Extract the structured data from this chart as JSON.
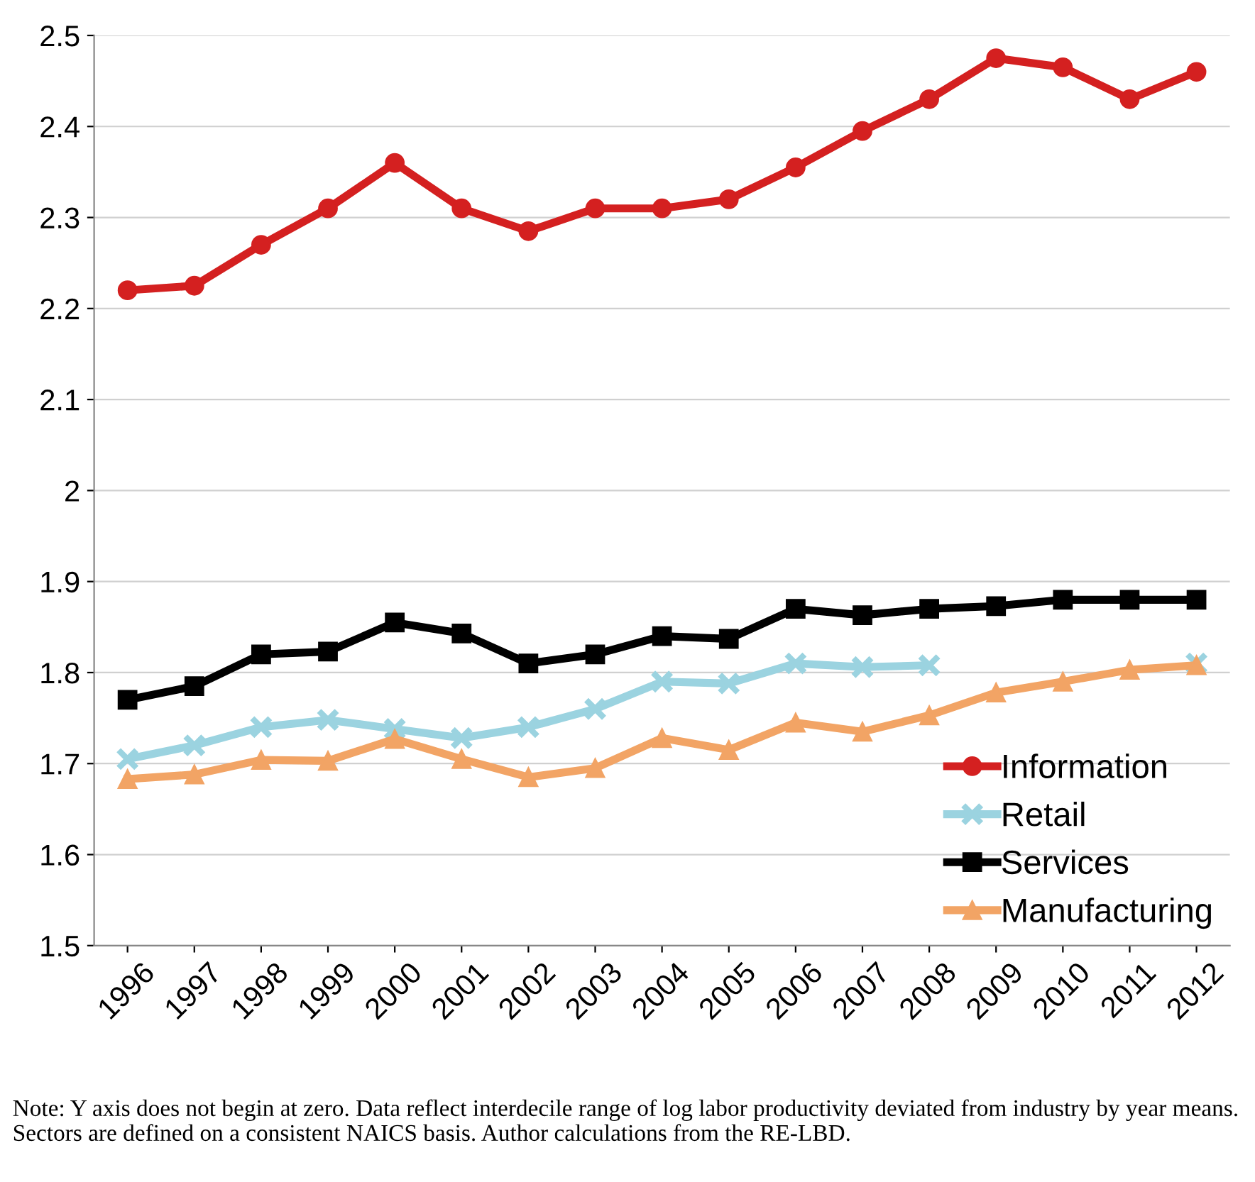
{
  "chart_data": {
    "type": "line",
    "categories": [
      "1996",
      "1997",
      "1998",
      "1999",
      "2000",
      "2001",
      "2002",
      "2003",
      "2004",
      "2005",
      "2006",
      "2007",
      "2008",
      "2009",
      "2010",
      "2011",
      "2012"
    ],
    "series": [
      {
        "name": "Information",
        "color": "#d42020",
        "marker": "circle",
        "values": [
          2.22,
          2.225,
          2.27,
          2.31,
          2.36,
          2.31,
          2.285,
          2.31,
          2.31,
          2.32,
          2.355,
          2.395,
          2.43,
          2.475,
          2.465,
          2.43,
          2.46
        ]
      },
      {
        "name": "Retail",
        "color": "#9bd3e0",
        "marker": "cross",
        "values": [
          1.705,
          1.72,
          1.74,
          1.748,
          1.738,
          1.728,
          1.74,
          1.76,
          1.79,
          1.788,
          1.81,
          1.806,
          1.808,
          null,
          null,
          null,
          1.81
        ]
      },
      {
        "name": "Services",
        "color": "#000000",
        "marker": "square",
        "values": [
          1.77,
          1.785,
          1.82,
          1.823,
          1.855,
          1.843,
          1.81,
          1.82,
          1.84,
          1.837,
          1.87,
          1.863,
          1.87,
          1.873,
          1.88,
          1.88,
          1.88
        ]
      },
      {
        "name": "Manufacturing",
        "color": "#f2a465",
        "marker": "triangle",
        "values": [
          1.683,
          1.688,
          1.704,
          1.703,
          1.727,
          1.705,
          1.685,
          1.695,
          1.728,
          1.715,
          1.745,
          1.735,
          1.753,
          1.778,
          1.79,
          1.803,
          1.808
        ]
      }
    ],
    "ylim": [
      1.5,
      2.5
    ],
    "yticks": [
      {
        "value": 1.5,
        "label": "1.5"
      },
      {
        "value": 1.6,
        "label": "1.6"
      },
      {
        "value": 1.7,
        "label": "1.7"
      },
      {
        "value": 1.8,
        "label": "1.8"
      },
      {
        "value": 1.9,
        "label": "1.9"
      },
      {
        "value": 2,
        "label": "2"
      },
      {
        "value": 2.1,
        "label": "2.1"
      },
      {
        "value": 2.2,
        "label": "2.2"
      },
      {
        "value": 2.3,
        "label": "2.3"
      },
      {
        "value": 2.4,
        "label": "2.4"
      },
      {
        "value": 2.5,
        "label": "2.5"
      }
    ],
    "grid": "y",
    "legend": "bottom right",
    "line_style": "solid",
    "annotations": [
      "Note: Y axis does not begin at zero. Data reflect interdecile range of log labor productivity deviated from industry by year means. Sectors are defined on a consistent NAICS basis. Author calculations from the RE-LBD."
    ]
  }
}
